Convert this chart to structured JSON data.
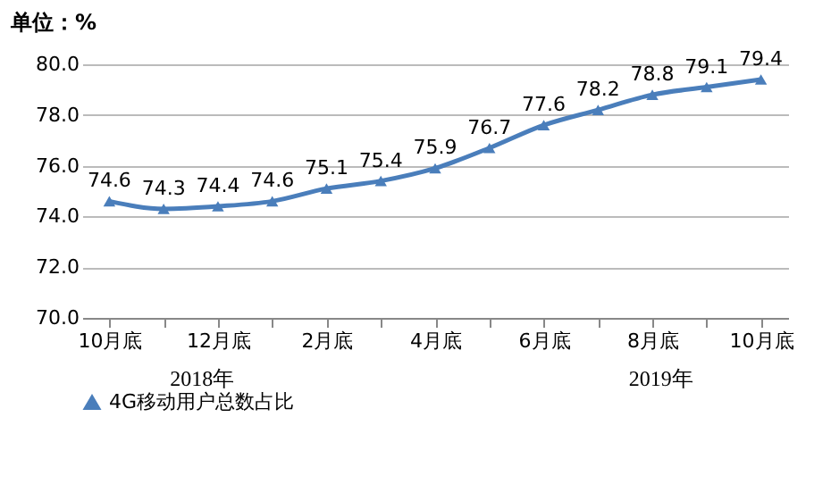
{
  "chart_data": {
    "type": "line",
    "title": "单位：%",
    "categories": [
      "10月底",
      null,
      "12月底",
      null,
      "2月底",
      null,
      "4月底",
      null,
      "6月底",
      null,
      "8月底",
      null,
      "10月底"
    ],
    "series": [
      {
        "name": "4G移动用户总数占比",
        "color": "#4a7ebb",
        "values": [
          74.6,
          74.3,
          74.4,
          74.6,
          75.1,
          75.4,
          75.9,
          76.7,
          77.6,
          78.2,
          78.8,
          79.1,
          79.4
        ]
      }
    ],
    "ylim": [
      70,
      80
    ],
    "yticks": [
      {
        "value": 70,
        "label": "70.0"
      },
      {
        "value": 72,
        "label": "72.0"
      },
      {
        "value": 74,
        "label": "74.0"
      },
      {
        "value": 76,
        "label": "76.0"
      },
      {
        "value": 78,
        "label": "78.0"
      },
      {
        "value": 80,
        "label": "80.0"
      }
    ],
    "grid": "y",
    "legend": "bottom",
    "marker": "triangle",
    "line_style": "solid",
    "data_labels": true,
    "annotations": [
      "2018年",
      "2019年"
    ]
  }
}
